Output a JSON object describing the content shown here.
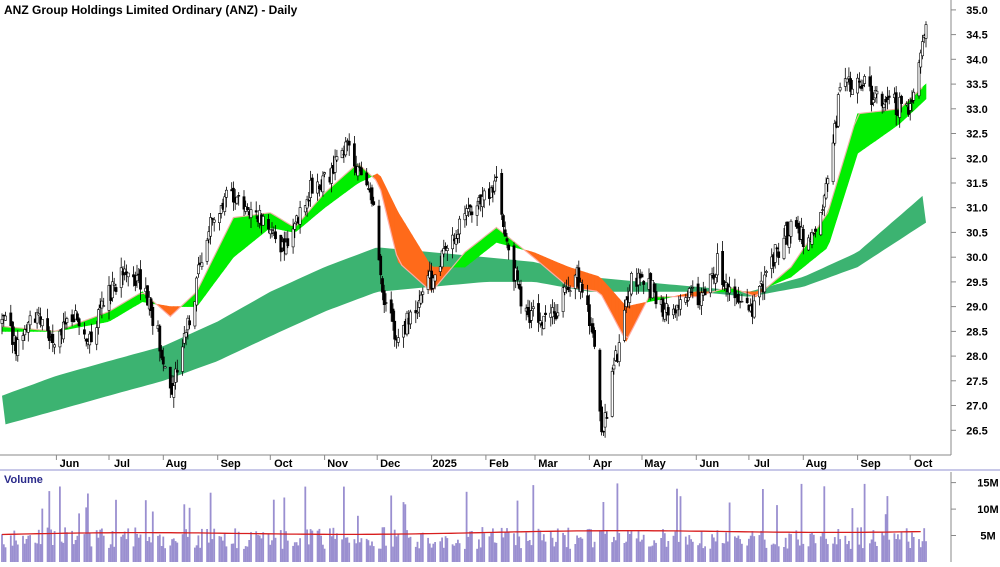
{
  "chart_data": [
    {
      "type": "candlestick",
      "title": "ANZ Group Holdings Limited Ordinary (ANZ) - Daily",
      "ylim": [
        26.0,
        35.2
      ],
      "y_ticks": [
        "26.5",
        "27.0",
        "27.5",
        "28.0",
        "28.5",
        "29.0",
        "29.5",
        "30.0",
        "30.5",
        "31.0",
        "31.5",
        "32.0",
        "32.5",
        "33.0",
        "33.5",
        "34.0",
        "34.5",
        "35.0"
      ],
      "x_ticks": [
        "Jun",
        "Jul",
        "Aug",
        "Sep",
        "Oct",
        "Nov",
        "Dec",
        "2025",
        "Feb",
        "Mar",
        "Apr",
        "May",
        "Jun",
        "Jul",
        "Aug",
        "Sep",
        "Oct"
      ],
      "close_anchors": [
        [
          "2024-05-01",
          28.7
        ],
        [
          "2024-05-10",
          28.2
        ],
        [
          "2024-05-20",
          28.8
        ],
        [
          "2024-05-31",
          28.3
        ],
        [
          "2024-06-10",
          28.9
        ],
        [
          "2024-06-20",
          28.4
        ],
        [
          "2024-06-28",
          29.0
        ],
        [
          "2024-07-10",
          29.9
        ],
        [
          "2024-07-22",
          29.3
        ],
        [
          "2024-08-06",
          27.4
        ],
        [
          "2024-08-15",
          28.7
        ],
        [
          "2024-08-26",
          30.4
        ],
        [
          "2024-09-05",
          31.3
        ],
        [
          "2024-09-20",
          31.0
        ],
        [
          "2024-10-01",
          30.6
        ],
        [
          "2024-10-10",
          30.1
        ],
        [
          "2024-10-22",
          31.3
        ],
        [
          "2024-11-05",
          31.7
        ],
        [
          "2024-11-15",
          32.3
        ],
        [
          "2024-11-22",
          31.5
        ],
        [
          "2024-11-29",
          31.0
        ],
        [
          "2024-12-05",
          29.2
        ],
        [
          "2024-12-13",
          28.3
        ],
        [
          "2024-12-20",
          28.9
        ],
        [
          "2025-01-02",
          29.6
        ],
        [
          "2025-01-15",
          30.6
        ],
        [
          "2025-01-31",
          31.2
        ],
        [
          "2025-02-07",
          31.4
        ],
        [
          "2025-02-14",
          30.2
        ],
        [
          "2025-02-21",
          29.1
        ],
        [
          "2025-03-04",
          28.6
        ],
        [
          "2025-03-12",
          28.9
        ],
        [
          "2025-03-25",
          29.7
        ],
        [
          "2025-04-03",
          28.4
        ],
        [
          "2025-04-08",
          26.4
        ],
        [
          "2025-04-16",
          27.9
        ],
        [
          "2025-04-25",
          29.7
        ],
        [
          "2025-05-06",
          29.4
        ],
        [
          "2025-05-15",
          28.9
        ],
        [
          "2025-05-27",
          29.2
        ],
        [
          "2025-06-06",
          29.3
        ],
        [
          "2025-06-13",
          29.9
        ],
        [
          "2025-06-24",
          29.0
        ],
        [
          "2025-07-02",
          28.9
        ],
        [
          "2025-07-15",
          30.0
        ],
        [
          "2025-07-25",
          30.6
        ],
        [
          "2025-08-05",
          30.3
        ],
        [
          "2025-08-13",
          31.2
        ],
        [
          "2025-08-22",
          33.3
        ],
        [
          "2025-09-01",
          33.7
        ],
        [
          "2025-09-10",
          33.2
        ],
        [
          "2025-09-19",
          33.1
        ],
        [
          "2025-09-30",
          33.0
        ],
        [
          "2025-10-08",
          34.4
        ],
        [
          "2025-10-10",
          34.6
        ]
      ],
      "long_band": {
        "fill_color": "#3cb371",
        "upper": [
          [
            "2024-05-01",
            27.2
          ],
          [
            "2024-06-01",
            27.6
          ],
          [
            "2024-07-01",
            27.9
          ],
          [
            "2024-08-01",
            28.2
          ],
          [
            "2024-09-01",
            28.7
          ],
          [
            "2024-10-01",
            29.3
          ],
          [
            "2024-11-01",
            29.8
          ],
          [
            "2024-12-01",
            30.2
          ],
          [
            "2025-01-01",
            30.1
          ],
          [
            "2025-02-01",
            30.0
          ],
          [
            "2025-03-01",
            29.9
          ],
          [
            "2025-04-01",
            29.6
          ],
          [
            "2025-05-01",
            29.5
          ],
          [
            "2025-06-01",
            29.4
          ],
          [
            "2025-07-01",
            29.3
          ],
          [
            "2025-08-01",
            29.6
          ],
          [
            "2025-09-01",
            30.1
          ],
          [
            "2025-10-10",
            31.3
          ]
        ],
        "lower": [
          [
            "2024-05-01",
            26.6
          ],
          [
            "2024-06-01",
            26.9
          ],
          [
            "2024-07-01",
            27.2
          ],
          [
            "2024-08-01",
            27.5
          ],
          [
            "2024-09-01",
            27.9
          ],
          [
            "2024-10-01",
            28.4
          ],
          [
            "2024-11-01",
            28.9
          ],
          [
            "2024-12-01",
            29.3
          ],
          [
            "2025-01-01",
            29.4
          ],
          [
            "2025-02-01",
            29.5
          ],
          [
            "2025-03-01",
            29.5
          ],
          [
            "2025-04-01",
            29.3
          ],
          [
            "2025-05-01",
            29.3
          ],
          [
            "2025-06-01",
            29.3
          ],
          [
            "2025-07-01",
            29.2
          ],
          [
            "2025-08-01",
            29.4
          ],
          [
            "2025-09-01",
            29.8
          ],
          [
            "2025-10-10",
            30.7
          ]
        ]
      },
      "short_band": {
        "fast": [
          [
            "2024-05-01",
            28.6
          ],
          [
            "2024-06-01",
            28.5
          ],
          [
            "2024-07-01",
            28.9
          ],
          [
            "2024-07-20",
            29.3
          ],
          [
            "2024-08-05",
            28.8
          ],
          [
            "2024-08-20",
            29.3
          ],
          [
            "2024-09-10",
            30.8
          ],
          [
            "2024-10-01",
            30.9
          ],
          [
            "2024-10-15",
            30.6
          ],
          [
            "2024-11-01",
            31.3
          ],
          [
            "2024-11-20",
            31.9
          ],
          [
            "2024-12-02",
            31.5
          ],
          [
            "2024-12-13",
            29.9
          ],
          [
            "2025-01-01",
            29.3
          ],
          [
            "2025-01-20",
            30.1
          ],
          [
            "2025-02-07",
            30.6
          ],
          [
            "2025-02-28",
            30.0
          ],
          [
            "2025-03-20",
            29.4
          ],
          [
            "2025-04-07",
            29.3
          ],
          [
            "2025-04-22",
            28.3
          ],
          [
            "2025-05-05",
            29.2
          ],
          [
            "2025-06-01",
            29.2
          ],
          [
            "2025-06-20",
            29.4
          ],
          [
            "2025-07-05",
            29.2
          ],
          [
            "2025-07-25",
            29.8
          ],
          [
            "2025-08-15",
            30.9
          ],
          [
            "2025-09-01",
            32.9
          ],
          [
            "2025-09-25",
            33.0
          ],
          [
            "2025-10-10",
            33.5
          ]
        ],
        "slow": [
          [
            "2024-05-01",
            28.5
          ],
          [
            "2024-06-01",
            28.5
          ],
          [
            "2024-07-01",
            28.7
          ],
          [
            "2024-07-20",
            29.1
          ],
          [
            "2024-08-05",
            29.0
          ],
          [
            "2024-08-20",
            29.0
          ],
          [
            "2024-09-10",
            30.0
          ],
          [
            "2024-10-01",
            30.6
          ],
          [
            "2024-10-15",
            30.5
          ],
          [
            "2024-11-01",
            31.0
          ],
          [
            "2024-11-20",
            31.5
          ],
          [
            "2024-12-02",
            31.7
          ],
          [
            "2024-12-13",
            30.9
          ],
          [
            "2025-01-01",
            29.8
          ],
          [
            "2025-01-20",
            29.8
          ],
          [
            "2025-02-07",
            30.3
          ],
          [
            "2025-02-28",
            30.1
          ],
          [
            "2025-03-20",
            29.8
          ],
          [
            "2025-04-07",
            29.6
          ],
          [
            "2025-04-22",
            29.0
          ],
          [
            "2025-05-05",
            29.1
          ],
          [
            "2025-06-01",
            29.3
          ],
          [
            "2025-06-20",
            29.3
          ],
          [
            "2025-07-05",
            29.3
          ],
          [
            "2025-07-25",
            29.6
          ],
          [
            "2025-08-15",
            30.2
          ],
          [
            "2025-09-01",
            32.1
          ],
          [
            "2025-09-25",
            32.7
          ],
          [
            "2025-10-10",
            33.2
          ]
        ],
        "up_color": "#00ee00",
        "down_color": "#ff6a1a",
        "fade_color": "#ffb0b0"
      },
      "candle_up_color": "#ffffff",
      "candle_down_color": "#000000",
      "grid": false,
      "legend": "none"
    },
    {
      "type": "bar",
      "title": "Volume",
      "ylim": [
        0,
        17
      ],
      "y_ticks": [
        "5M",
        "10M",
        "15M"
      ],
      "bar_color": "#9a8fd0",
      "average_line_color": "#d81e1e",
      "average_start": 5.2,
      "average_end": 5.9,
      "typical_volume": 5.5
    }
  ],
  "range": {
    "start": "2024-05-01",
    "end": "2025-10-10"
  }
}
